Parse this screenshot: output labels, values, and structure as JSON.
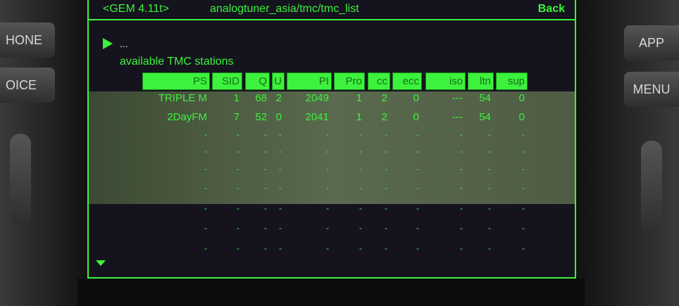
{
  "hardware_buttons": {
    "left": [
      "HONE",
      "OICE"
    ],
    "right": [
      "APP",
      "MENU"
    ]
  },
  "header": {
    "version": "<GEM 4.11t>",
    "path": "analogtuner_asia/tmc/tmc_list",
    "back": "Back"
  },
  "nav": {
    "ellipsis": "...",
    "up_arrow_icon": "triangle-right",
    "down_arrow_icon": "triangle-down"
  },
  "section_title": "available TMC stations",
  "table": {
    "columns": [
      "PS",
      "SID",
      "Q",
      "U",
      "PI",
      "Pro",
      "cc",
      "ecc",
      "iso",
      "ltn",
      "sup"
    ],
    "rows": [
      [
        "TRIPLE M",
        "1",
        "68",
        "2",
        "2049",
        "1",
        "2",
        "0",
        "---",
        "54",
        "0"
      ],
      [
        "2DayFM",
        "7",
        "52",
        "0",
        "2041",
        "1",
        "2",
        "0",
        "---",
        "54",
        "0"
      ],
      [
        "-",
        "-",
        "-",
        "-",
        "-",
        "-",
        "-",
        "-",
        "-",
        "-",
        "-"
      ],
      [
        "-",
        "-",
        "-",
        "-",
        "-",
        "-",
        "-",
        "-",
        "-",
        "-",
        "-"
      ],
      [
        "-",
        "-",
        "-",
        "-",
        "-",
        "-",
        "-",
        "-",
        "-",
        "-",
        "-"
      ],
      [
        "-",
        "-",
        "-",
        "-",
        "-",
        "-",
        "-",
        "-",
        "-",
        "-",
        "-"
      ],
      [
        "-",
        "-",
        "-",
        "-",
        "-",
        "-",
        "-",
        "-",
        "-",
        "-",
        "-"
      ],
      [
        "-",
        "-",
        "-",
        "-",
        "-",
        "-",
        "-",
        "-",
        "-",
        "-",
        "-"
      ],
      [
        "-",
        "-",
        "-",
        "-",
        "-",
        "-",
        "-",
        "-",
        "-",
        "-",
        "-"
      ]
    ]
  },
  "colors": {
    "accent": "#3cf23c",
    "background": "#15141e",
    "highlight_band": "#5a6a4e"
  }
}
